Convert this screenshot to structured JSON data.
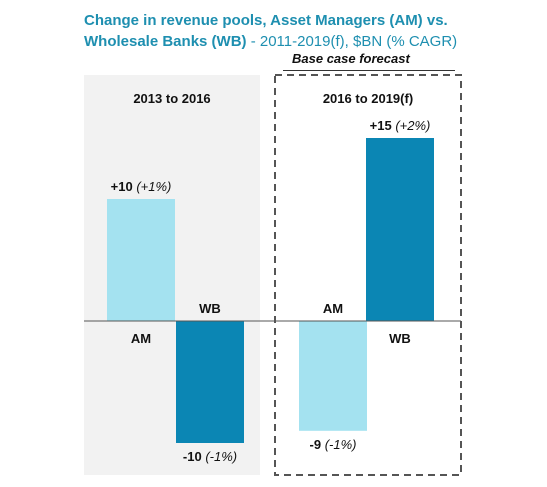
{
  "title": {
    "bold": "Change in revenue pools, Asset Managers (AM) vs. Wholesale Banks (WB)",
    "rest": " - 2011-2019(f), $BN (% CAGR)"
  },
  "forecast_label": "Base case forecast",
  "colors": {
    "am": "#a4e2f0",
    "wb": "#0b86b4",
    "panel": "#f2f2f2",
    "axis": "#555555"
  },
  "chart_data": {
    "type": "bar",
    "title": "Change in revenue pools, Asset Managers (AM) vs. Wholesale Banks (WB) - 2011-2019(f), $BN (% CAGR)",
    "groups": [
      {
        "label": "2013 to 2016",
        "bars": [
          {
            "category": "AM",
            "value": 10,
            "label": "+10",
            "cagr": "(+1%)"
          },
          {
            "category": "WB",
            "value": -10,
            "label": "-10",
            "cagr": "(-1%)"
          }
        ]
      },
      {
        "label": "2016 to 2019(f)",
        "bars": [
          {
            "category": "AM",
            "value": -9,
            "label": "-9",
            "cagr": "(-1%)"
          },
          {
            "category": "WB",
            "value": 15,
            "label": "+15",
            "cagr": "(+2%)"
          }
        ]
      }
    ],
    "ylim": [
      -12,
      17
    ],
    "grid": false,
    "legend": "none"
  }
}
